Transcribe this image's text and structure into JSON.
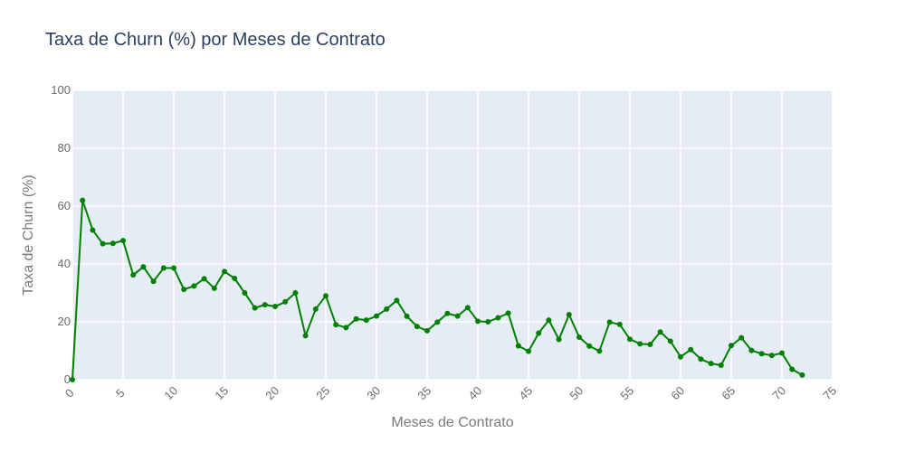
{
  "chart_data": {
    "type": "line",
    "title": "Taxa de Churn (%) por Meses de Contrato",
    "xlabel": "Meses de Contrato",
    "ylabel": "Taxa de Churn (%)",
    "xlim": [
      0,
      75
    ],
    "ylim": [
      0,
      100
    ],
    "xticks": [
      0,
      5,
      10,
      15,
      20,
      25,
      30,
      35,
      40,
      45,
      50,
      55,
      60,
      65,
      70,
      75
    ],
    "yticks": [
      0,
      20,
      40,
      60,
      80,
      100
    ],
    "grid": true,
    "background": "#e5ecf6",
    "line_color": "#008000",
    "x": [
      0,
      1,
      2,
      3,
      4,
      5,
      6,
      7,
      8,
      9,
      10,
      11,
      12,
      13,
      14,
      15,
      16,
      17,
      18,
      19,
      20,
      21,
      22,
      23,
      24,
      25,
      26,
      27,
      28,
      29,
      30,
      31,
      32,
      33,
      34,
      35,
      36,
      37,
      38,
      39,
      40,
      41,
      42,
      43,
      44,
      45,
      46,
      47,
      48,
      49,
      50,
      51,
      52,
      53,
      54,
      55,
      56,
      57,
      58,
      59,
      60,
      61,
      62,
      63,
      64,
      65,
      66,
      67,
      68,
      69,
      70,
      71,
      72
    ],
    "y": [
      0,
      62,
      51.7,
      47,
      47.1,
      48.1,
      36.2,
      39,
      34,
      38.6,
      38.6,
      31.2,
      32.4,
      34.9,
      31.6,
      37.4,
      35,
      30,
      24.8,
      25.9,
      25.3,
      26.9,
      30,
      15.2,
      24.4,
      29,
      19,
      18,
      21,
      20.6,
      22,
      24.4,
      27.4,
      21.9,
      18.4,
      16.9,
      19.9,
      22.9,
      22,
      24.9,
      20.2,
      20,
      21.4,
      23,
      11.7,
      9.8,
      16.1,
      20.6,
      13.9,
      22.5,
      14.7,
      11.6,
      9.9,
      19.9,
      19.1,
      14,
      12.4,
      12.2,
      16.5,
      13.3,
      7.9,
      10.4,
      7.1,
      5.6,
      5,
      11.8,
      14.5,
      10.1,
      9,
      8.4,
      9.2,
      3.6,
      1.6
    ]
  }
}
